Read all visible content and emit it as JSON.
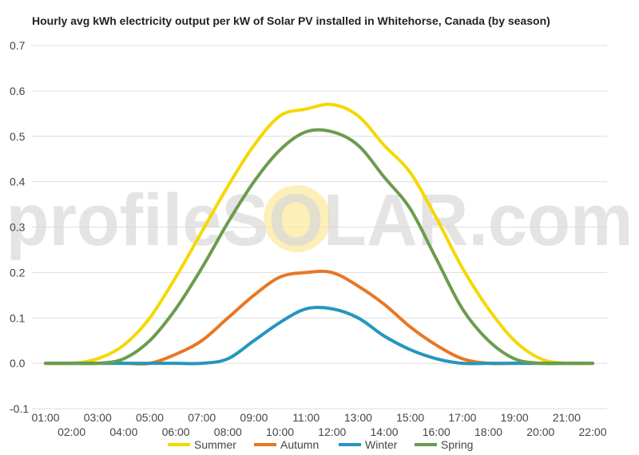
{
  "chart_data": {
    "type": "line",
    "title": "Hourly avg kWh electricity output per kW of Solar PV installed in Whitehorse, Canada (by season)",
    "xlabel": "",
    "ylabel": "",
    "x": [
      "01:00",
      "02:00",
      "03:00",
      "04:00",
      "05:00",
      "06:00",
      "07:00",
      "08:00",
      "09:00",
      "10:00",
      "11:00",
      "12:00",
      "13:00",
      "14:00",
      "15:00",
      "16:00",
      "17:00",
      "18:00",
      "19:00",
      "20:00",
      "21:00",
      "22:00"
    ],
    "ylim": [
      -0.1,
      0.7
    ],
    "yticks": [
      "-0.1",
      "0.0",
      "0.1",
      "0.2",
      "0.3",
      "0.4",
      "0.5",
      "0.6",
      "0.7"
    ],
    "grid": true,
    "legend_position": "bottom",
    "series": [
      {
        "name": "Summer",
        "color": "#f5d800",
        "values": [
          0.0,
          0.0,
          0.01,
          0.04,
          0.1,
          0.19,
          0.29,
          0.39,
          0.48,
          0.545,
          0.56,
          0.57,
          0.545,
          0.48,
          0.42,
          0.32,
          0.21,
          0.12,
          0.05,
          0.01,
          0.0,
          0.0
        ]
      },
      {
        "name": "Autumn",
        "color": "#e87722",
        "values": [
          0.0,
          0.0,
          0.0,
          0.0,
          0.0,
          0.02,
          0.05,
          0.1,
          0.15,
          0.19,
          0.2,
          0.2,
          0.17,
          0.13,
          0.08,
          0.04,
          0.01,
          0.0,
          0.0,
          0.0,
          0.0,
          0.0
        ]
      },
      {
        "name": "Winter",
        "color": "#2596be",
        "values": [
          0.0,
          0.0,
          0.0,
          0.0,
          0.0,
          0.0,
          0.0,
          0.01,
          0.05,
          0.09,
          0.12,
          0.12,
          0.1,
          0.06,
          0.03,
          0.01,
          0.0,
          0.0,
          0.0,
          0.0,
          0.0,
          0.0
        ]
      },
      {
        "name": "Spring",
        "color": "#6b9c4e",
        "values": [
          0.0,
          0.0,
          0.0,
          0.01,
          0.05,
          0.12,
          0.21,
          0.31,
          0.4,
          0.47,
          0.51,
          0.51,
          0.48,
          0.41,
          0.34,
          0.23,
          0.12,
          0.05,
          0.01,
          0.0,
          0.0,
          0.0
        ]
      }
    ]
  },
  "watermark": {
    "text": "profileSOLAR.com",
    "sun_color": "#fbe9a0"
  }
}
